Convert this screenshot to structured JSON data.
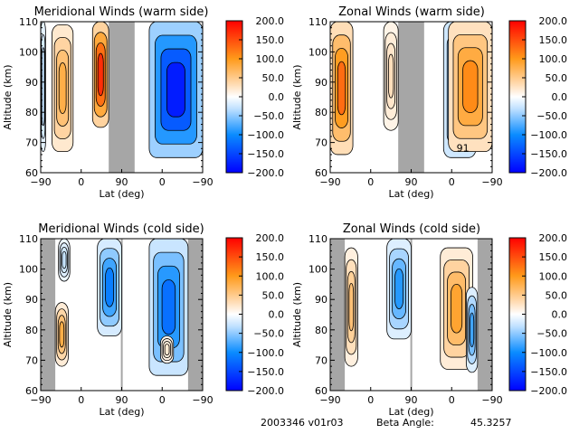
{
  "chart_data": [
    {
      "type": "heatmap",
      "id": "mer-warm",
      "title": "Meridional Winds (warm side)",
      "xlabel": "Lat (deg)",
      "ylabel": "Altitude (km)",
      "x_ticks": [
        "-90",
        "0",
        "90",
        "0",
        "-90"
      ],
      "y_ticks": [
        "60",
        "70",
        "80",
        "90",
        "100",
        "110"
      ],
      "ylim": [
        60,
        110
      ],
      "gaps": [
        [
          0.42,
          0.58
        ]
      ],
      "colorbar": {
        "ticks": [
          "200.0",
          "150.0",
          "100.0",
          "50.0",
          "0.0",
          "-50.0",
          "-100.0",
          "-150.0",
          "-200.0"
        ],
        "range": [
          -200,
          200
        ]
      },
      "features": [
        {
          "name": "neg-strip-left",
          "x0": 0.0,
          "x1": 0.03,
          "y0": 67,
          "y1": 110,
          "value": -40
        },
        {
          "name": "pos-blob-a",
          "x0": 0.07,
          "x1": 0.2,
          "y0": 67,
          "y1": 109,
          "value": 60,
          "peak": 80
        },
        {
          "name": "pos-blob-b",
          "x0": 0.32,
          "x1": 0.42,
          "y0": 75,
          "y1": 110,
          "value": 120,
          "peak": 170
        },
        {
          "name": "neg-blob-c",
          "x0": 0.67,
          "x1": 1.0,
          "y0": 65,
          "y1": 110,
          "value": -130,
          "peak": -180
        }
      ]
    },
    {
      "type": "heatmap",
      "id": "zon-warm",
      "title": "Zonal Winds (warm side)",
      "xlabel": "Lat (deg)",
      "ylabel": "Altitude (km)",
      "x_ticks": [
        "-90",
        "0",
        "90",
        "0",
        "-90"
      ],
      "y_ticks": [
        "60",
        "70",
        "80",
        "90",
        "100",
        "110"
      ],
      "ylim": [
        60,
        110
      ],
      "gaps": [
        [
          0.42,
          0.58
        ]
      ],
      "colorbar": {
        "ticks": [
          "200.0",
          "150.0",
          "100.0",
          "50.0",
          "0.0",
          "-50.0",
          "-100.0",
          "-150.0",
          "-200.0"
        ],
        "range": [
          -200,
          200
        ]
      },
      "annotation": "91",
      "features": [
        {
          "name": "pos-blob-a",
          "x0": 0.0,
          "x1": 0.14,
          "y0": 66,
          "y1": 110,
          "value": 90,
          "peak": 130
        },
        {
          "name": "pos-blob-b",
          "x0": 0.33,
          "x1": 0.42,
          "y0": 74,
          "y1": 110,
          "value": 30
        },
        {
          "name": "neg-blob-c",
          "x0": 0.7,
          "x1": 0.9,
          "y0": 65,
          "y1": 110,
          "value": -70,
          "peak": -100
        },
        {
          "name": "pos-blob-d",
          "x0": 0.73,
          "x1": 1.0,
          "y0": 67,
          "y1": 110,
          "value": 80,
          "peak": 110
        }
      ]
    },
    {
      "type": "heatmap",
      "id": "mer-cold",
      "title": "Meridional Winds (cold side)",
      "xlabel": "Lat (deg)",
      "ylabel": "Altitude (km)",
      "x_ticks": [
        "-90",
        "0",
        "90",
        "0",
        "-90"
      ],
      "y_ticks": [
        "60",
        "70",
        "80",
        "90",
        "100",
        "110"
      ],
      "ylim": [
        60,
        110
      ],
      "gaps": [
        [
          0.0,
          0.09
        ],
        [
          0.495,
          0.505
        ],
        [
          0.91,
          1.0
        ]
      ],
      "colorbar": {
        "ticks": [
          "200.0",
          "150.0",
          "100.0",
          "50.0",
          "0.0",
          "-50.0",
          "-100.0",
          "-150.0",
          "-200.0"
        ],
        "range": [
          -200,
          200
        ]
      },
      "features": [
        {
          "name": "neg-blob-a",
          "x0": 0.11,
          "x1": 0.18,
          "y0": 96,
          "y1": 110,
          "value": -30
        },
        {
          "name": "pos-blob-b",
          "x0": 0.09,
          "x1": 0.17,
          "y0": 68,
          "y1": 89,
          "value": 50,
          "peak": 80
        },
        {
          "name": "neg-blob-c",
          "x0": 0.35,
          "x1": 0.5,
          "y0": 78,
          "y1": 110,
          "value": -60,
          "peak": -110
        },
        {
          "name": "neg-blob-d",
          "x0": 0.67,
          "x1": 0.91,
          "y0": 65,
          "y1": 110,
          "value": -80,
          "peak": -120
        },
        {
          "name": "pos-blob-e",
          "x0": 0.74,
          "x1": 0.82,
          "y0": 69,
          "y1": 78,
          "value": 20
        }
      ]
    },
    {
      "type": "heatmap",
      "id": "zon-cold",
      "title": "Zonal Winds (cold side)",
      "xlabel": "Lat (deg)",
      "ylabel": "Altitude (km)",
      "x_ticks": [
        "-90",
        "0",
        "90",
        "0",
        "-90"
      ],
      "y_ticks": [
        "60",
        "70",
        "80",
        "90",
        "100",
        "110"
      ],
      "ylim": [
        60,
        110
      ],
      "gaps": [
        [
          0.0,
          0.09
        ],
        [
          0.495,
          0.505
        ],
        [
          0.91,
          1.0
        ]
      ],
      "colorbar": {
        "ticks": [
          "200.0",
          "150.0",
          "100.0",
          "50.0",
          "0.0",
          "-50.0",
          "-100.0",
          "-150.0",
          "-200.0"
        ],
        "range": [
          -200,
          200
        ]
      },
      "features": [
        {
          "name": "pos-blob-a",
          "x0": 0.09,
          "x1": 0.17,
          "y0": 68,
          "y1": 107,
          "value": 40,
          "peak": 60
        },
        {
          "name": "neg-blob-b",
          "x0": 0.35,
          "x1": 0.5,
          "y0": 77,
          "y1": 110,
          "value": -50,
          "peak": -90
        },
        {
          "name": "pos-blob-c",
          "x0": 0.68,
          "x1": 0.88,
          "y0": 67,
          "y1": 107,
          "value": 50,
          "peak": 90
        },
        {
          "name": "neg-blob-d",
          "x0": 0.84,
          "x1": 0.91,
          "y0": 66,
          "y1": 94,
          "value": -50,
          "peak": -80
        }
      ]
    }
  ],
  "footer": {
    "id_text": "2003346 v01r03",
    "beta_label": "Beta Angle:",
    "beta_value": "45.3257"
  }
}
